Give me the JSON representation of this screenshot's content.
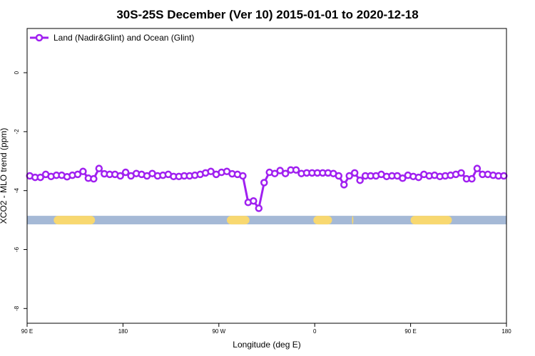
{
  "chart_data": {
    "type": "line",
    "title": "30S-25S December (Ver 10)   2015-01-01 to 2020-12-18",
    "xlabel": "Longitude (deg E)",
    "ylabel": "XCO2 - MLO trend (ppm)",
    "xlim": [
      90,
      450
    ],
    "ylim": [
      -8.5,
      1.5
    ],
    "x_ticks": [
      {
        "value": 90,
        "label": "90 E"
      },
      {
        "value": 162,
        "label": "180"
      },
      {
        "value": 234,
        "label": "90 W"
      },
      {
        "value": 306,
        "label": "0"
      },
      {
        "value": 378,
        "label": "90 E"
      },
      {
        "value": 450,
        "label": "180"
      }
    ],
    "y_ticks": [
      {
        "value": 0,
        "label": "0"
      },
      {
        "value": -2,
        "label": "-2"
      },
      {
        "value": -4,
        "label": "-4"
      },
      {
        "value": -6,
        "label": "-6"
      },
      {
        "value": -8,
        "label": "-8"
      }
    ],
    "legend": {
      "position": "top-left"
    },
    "series": [
      {
        "name": "Land (Nadir&Glint) and Ocean (Glint)",
        "color": "#a020f0",
        "x": [
          92,
          96,
          100,
          104,
          108,
          112,
          116,
          120,
          124,
          128,
          132,
          136,
          140,
          144,
          148,
          152,
          156,
          160,
          164,
          168,
          172,
          176,
          180,
          184,
          188,
          192,
          196,
          200,
          204,
          208,
          212,
          216,
          220,
          224,
          228,
          232,
          236,
          240,
          244,
          248,
          252,
          256,
          260,
          264,
          268,
          272,
          276,
          280,
          284,
          288,
          292,
          296,
          300,
          304,
          308,
          312,
          316,
          320,
          324,
          328,
          332,
          336,
          340,
          344,
          348,
          352,
          356,
          360,
          364,
          368,
          372,
          376,
          380,
          384,
          388,
          392,
          396,
          400,
          404,
          408,
          412,
          416,
          420,
          424,
          428,
          432,
          436,
          440,
          444,
          448
        ],
        "values": [
          -3.5,
          -3.55,
          -3.55,
          -3.45,
          -3.52,
          -3.48,
          -3.48,
          -3.53,
          -3.48,
          -3.45,
          -3.35,
          -3.58,
          -3.6,
          -3.25,
          -3.43,
          -3.45,
          -3.45,
          -3.5,
          -3.38,
          -3.5,
          -3.42,
          -3.45,
          -3.5,
          -3.42,
          -3.5,
          -3.48,
          -3.45,
          -3.52,
          -3.52,
          -3.5,
          -3.5,
          -3.48,
          -3.45,
          -3.4,
          -3.35,
          -3.45,
          -3.38,
          -3.35,
          -3.43,
          -3.45,
          -3.5,
          -4.4,
          -4.35,
          -4.6,
          -3.73,
          -3.38,
          -3.42,
          -3.32,
          -3.42,
          -3.3,
          -3.3,
          -3.42,
          -3.4,
          -3.4,
          -3.4,
          -3.4,
          -3.4,
          -3.42,
          -3.5,
          -3.8,
          -3.5,
          -3.4,
          -3.65,
          -3.5,
          -3.5,
          -3.5,
          -3.45,
          -3.52,
          -3.5,
          -3.5,
          -3.58,
          -3.48,
          -3.52,
          -3.55,
          -3.45,
          -3.5,
          -3.48,
          -3.52,
          -3.5,
          -3.48,
          -3.45,
          -3.4,
          -3.6,
          -3.6,
          -3.25,
          -3.45,
          -3.45,
          -3.48,
          -3.5,
          -3.5
        ]
      }
    ],
    "surface_band": {
      "y": -5,
      "ocean_color": "#a5b9d6",
      "land_color": "#f8d870",
      "land_segments": [
        [
          110,
          141
        ],
        [
          240,
          257
        ],
        [
          305,
          319
        ],
        [
          334,
          335
        ],
        [
          378,
          409
        ]
      ]
    }
  }
}
